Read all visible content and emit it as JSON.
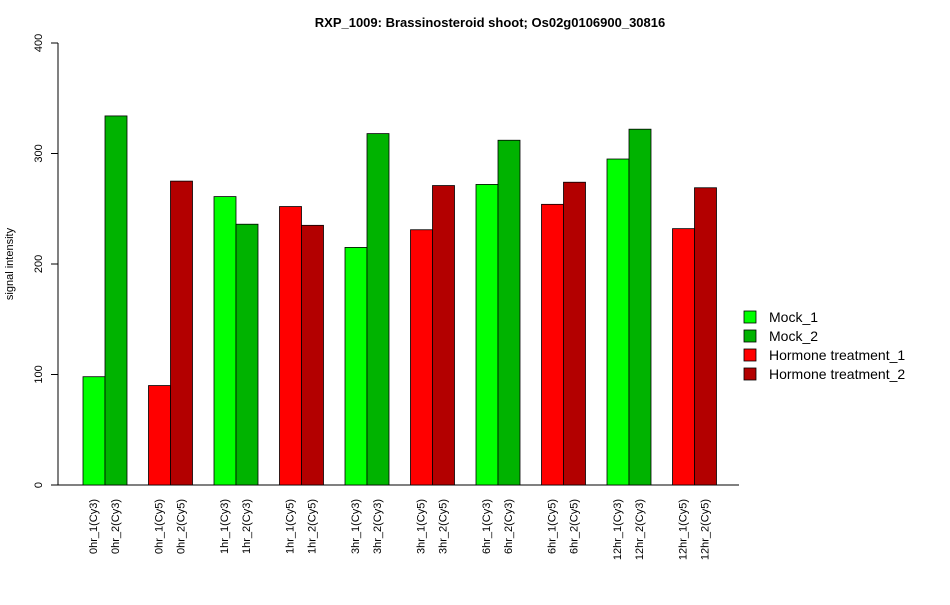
{
  "chart_data": {
    "type": "bar",
    "title": "RXP_1009: Brassinosteroid shoot; Os02g0106900_30816",
    "xlabel": "",
    "ylabel": "signal intensity",
    "ylim": [
      0,
      400
    ],
    "yticks": [
      0,
      100,
      200,
      300,
      400
    ],
    "grid": false,
    "legend_position": "right",
    "series_colors": {
      "Mock_1": "#00ff00",
      "Mock_2": "#00b300",
      "Hormone treatment_1": "#ff0000",
      "Hormone treatment_2": "#b30000"
    },
    "legend": [
      {
        "label": "Mock_1",
        "color": "#00ff00"
      },
      {
        "label": "Mock_2",
        "color": "#00b300"
      },
      {
        "label": "Hormone treatment_1",
        "color": "#ff0000"
      },
      {
        "label": "Hormone treatment_2",
        "color": "#b30000"
      }
    ],
    "groups": [
      {
        "bars": [
          {
            "label": "0hr_1(Cy3)",
            "value": 98,
            "series": "Mock_1"
          },
          {
            "label": "0hr_2(Cy3)",
            "value": 334,
            "series": "Mock_2"
          }
        ]
      },
      {
        "bars": [
          {
            "label": "0hr_1(Cy5)",
            "value": 90,
            "series": "Hormone treatment_1"
          },
          {
            "label": "0hr_2(Cy5)",
            "value": 275,
            "series": "Hormone treatment_2"
          }
        ]
      },
      {
        "bars": [
          {
            "label": "1hr_1(Cy3)",
            "value": 261,
            "series": "Mock_1"
          },
          {
            "label": "1hr_2(Cy3)",
            "value": 236,
            "series": "Mock_2"
          }
        ]
      },
      {
        "bars": [
          {
            "label": "1hr_1(Cy5)",
            "value": 252,
            "series": "Hormone treatment_1"
          },
          {
            "label": "1hr_2(Cy5)",
            "value": 235,
            "series": "Hormone treatment_2"
          }
        ]
      },
      {
        "bars": [
          {
            "label": "3hr_1(Cy3)",
            "value": 215,
            "series": "Mock_1"
          },
          {
            "label": "3hr_2(Cy3)",
            "value": 318,
            "series": "Mock_2"
          }
        ]
      },
      {
        "bars": [
          {
            "label": "3hr_1(Cy5)",
            "value": 231,
            "series": "Hormone treatment_1"
          },
          {
            "label": "3hr_2(Cy5)",
            "value": 271,
            "series": "Hormone treatment_2"
          }
        ]
      },
      {
        "bars": [
          {
            "label": "6hr_1(Cy3)",
            "value": 272,
            "series": "Mock_1"
          },
          {
            "label": "6hr_2(Cy3)",
            "value": 312,
            "series": "Mock_2"
          }
        ]
      },
      {
        "bars": [
          {
            "label": "6hr_1(Cy5)",
            "value": 254,
            "series": "Hormone treatment_1"
          },
          {
            "label": "6hr_2(Cy5)",
            "value": 274,
            "series": "Hormone treatment_2"
          }
        ]
      },
      {
        "bars": [
          {
            "label": "12hr_1(Cy3)",
            "value": 295,
            "series": "Mock_1"
          },
          {
            "label": "12hr_2(Cy3)",
            "value": 322,
            "series": "Mock_2"
          }
        ]
      },
      {
        "bars": [
          {
            "label": "12hr_1(Cy5)",
            "value": 232,
            "series": "Hormone treatment_1"
          },
          {
            "label": "12hr_2(Cy5)",
            "value": 269,
            "series": "Hormone treatment_2"
          }
        ]
      }
    ]
  }
}
